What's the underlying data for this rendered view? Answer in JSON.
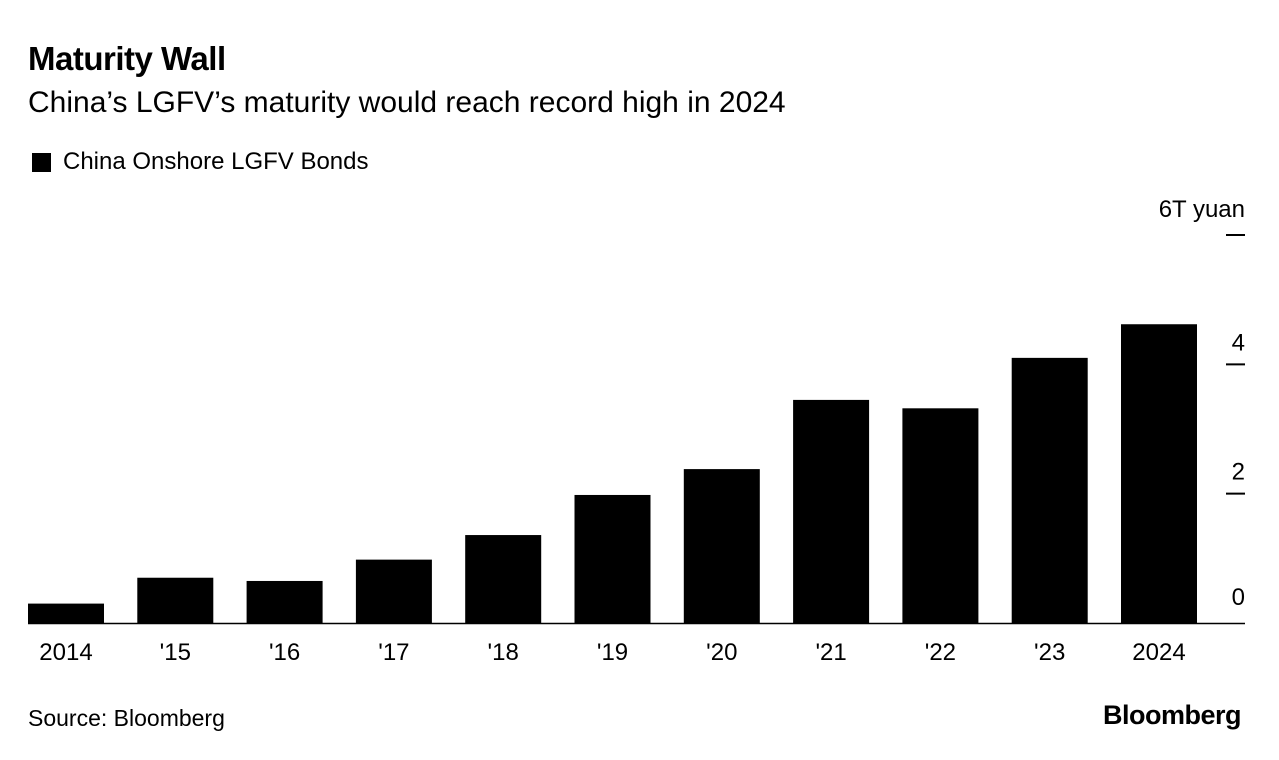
{
  "header": {
    "title": "Maturity Wall",
    "subtitle": "China’s LGFV’s maturity would reach record high in 2024"
  },
  "legend": {
    "label": "China Onshore LGFV Bonds",
    "color": "#000000"
  },
  "footer": {
    "source": "Source: Bloomberg",
    "brand": "Bloomberg"
  },
  "chart_data": {
    "type": "bar",
    "title": "Maturity Wall",
    "subtitle": "China’s LGFV’s maturity would reach record high in 2024",
    "categories": [
      "2014",
      "'15",
      "'16",
      "'17",
      "'18",
      "'19",
      "'20",
      "'21",
      "'22",
      "'23",
      "2024"
    ],
    "series": [
      {
        "name": "China Onshore LGFV Bonds",
        "values": [
          0.3,
          0.7,
          0.65,
          0.98,
          1.36,
          1.98,
          2.38,
          3.45,
          3.32,
          4.1,
          4.62
        ],
        "color": "#000000"
      }
    ],
    "unit_label": "6T yuan",
    "y_ticks": [
      "0",
      "2",
      "4"
    ],
    "ylim": [
      0,
      6
    ],
    "ylabel": "",
    "xlabel": "",
    "axis_position": "right",
    "legend_position": "top-left",
    "grid": false
  }
}
